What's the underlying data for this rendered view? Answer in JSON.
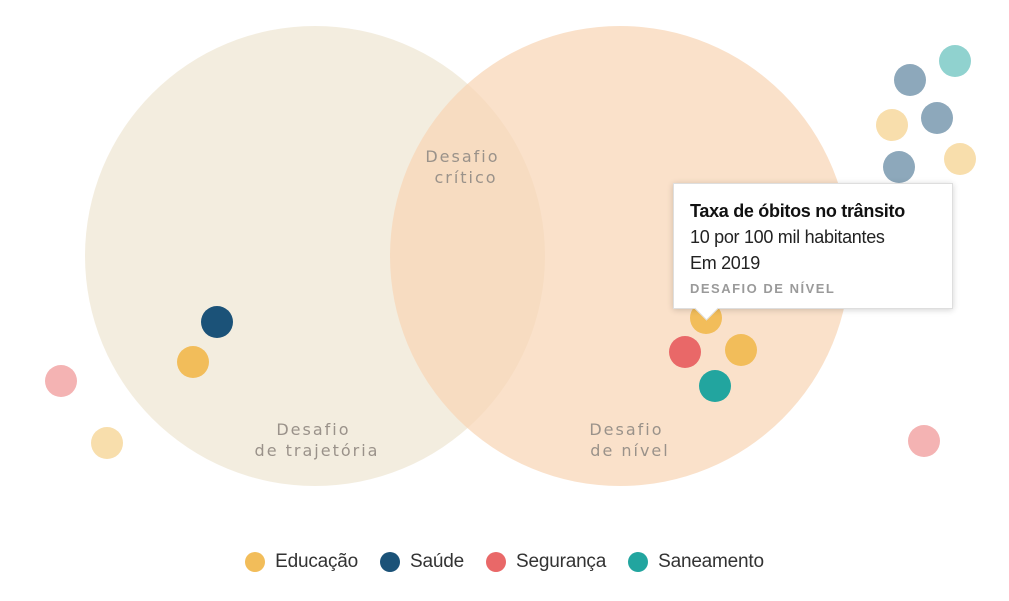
{
  "regions": [
    {
      "key": "trajetoria",
      "lines": [
        "Desafio",
        "de trajetória"
      ],
      "color": "#efe6d2"
    },
    {
      "key": "nivel",
      "lines": [
        "Desafio",
        "de nível"
      ],
      "color": "#f8d6b6"
    },
    {
      "key": "critico",
      "lines": [
        "Desafio",
        "crítico"
      ]
    }
  ],
  "categories": [
    {
      "key": "educacao",
      "label": "Educação",
      "color": "#f2bd5a"
    },
    {
      "key": "saude",
      "label": "Saúde",
      "color": "#1b5278"
    },
    {
      "key": "seguranca",
      "label": "Segurança",
      "color": "#e96868"
    },
    {
      "key": "saneamento",
      "label": "Saneamento",
      "color": "#22a59f"
    }
  ],
  "markers": [
    {
      "category": "saude",
      "region": "trajetoria",
      "faded": false
    },
    {
      "category": "educacao",
      "region": "trajetoria",
      "faded": false
    },
    {
      "category": "educacao",
      "region": "nivel",
      "faded": false,
      "selected": true
    },
    {
      "category": "seguranca",
      "region": "nivel",
      "faded": false
    },
    {
      "category": "educacao",
      "region": "nivel",
      "faded": false
    },
    {
      "category": "saneamento",
      "region": "nivel",
      "faded": false
    },
    {
      "category": "seguranca",
      "region": "outside",
      "faded": true
    },
    {
      "category": "educacao",
      "region": "outside",
      "faded": true
    },
    {
      "category": "saneamento",
      "region": "outside",
      "faded": true
    },
    {
      "category": "saude",
      "region": "outside",
      "faded": true
    },
    {
      "category": "educacao",
      "region": "outside",
      "faded": true
    },
    {
      "category": "saude",
      "region": "outside",
      "faded": true
    },
    {
      "category": "educacao",
      "region": "outside",
      "faded": true
    },
    {
      "category": "saude",
      "region": "outside",
      "faded": true
    },
    {
      "category": "seguranca",
      "region": "outside",
      "faded": true
    }
  ],
  "tooltip": {
    "title": "Taxa de óbitos no trânsito",
    "value": "10 por 100 mil habitantes",
    "year": "Em 2019",
    "tag": "DESAFIO DE NÍVEL"
  }
}
